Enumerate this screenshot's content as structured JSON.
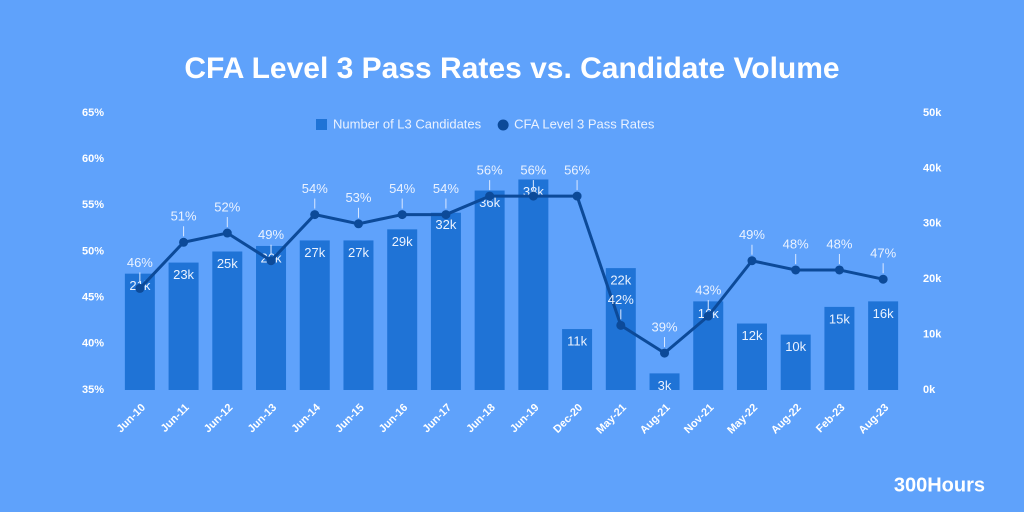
{
  "chart_data": {
    "type": "combo",
    "title": "CFA Level 3 Pass Rates vs. Candidate Volume",
    "categories": [
      "Jun-10",
      "Jun-11",
      "Jun-12",
      "Jun-13",
      "Jun-14",
      "Jun-15",
      "Jun-16",
      "Jun-17",
      "Jun-18",
      "Jun-19",
      "Dec-20",
      "May-21",
      "Aug-21",
      "Nov-21",
      "May-22",
      "Aug-22",
      "Feb-23",
      "Aug-23"
    ],
    "series": [
      {
        "name": "Number of L3 Candidates",
        "type": "bar",
        "axis": "y2",
        "color": "#1f73d6",
        "values": [
          21000,
          23000,
          25000,
          26000,
          27000,
          27000,
          29000,
          32000,
          36000,
          38000,
          11000,
          22000,
          3000,
          16000,
          12000,
          10000,
          15000,
          16000
        ],
        "value_labels": [
          "21k",
          "23k",
          "25k",
          "26k",
          "27k",
          "27k",
          "29k",
          "32k",
          "36k",
          "38k",
          "11k",
          "22k",
          "3k",
          "16k",
          "12k",
          "10k",
          "15k",
          "16k"
        ]
      },
      {
        "name": "CFA Level 3 Pass Rates",
        "type": "line",
        "color": "#0c4a99",
        "values": [
          46,
          51,
          52,
          49,
          54,
          53,
          54,
          54,
          56,
          56,
          56,
          42,
          39,
          43,
          49,
          48,
          48,
          47
        ],
        "value_labels": [
          "46%",
          "51%",
          "52%",
          "49%",
          "54%",
          "53%",
          "54%",
          "54%",
          "56%",
          "56%",
          "56%",
          "42%",
          "39%",
          "43%",
          "49%",
          "48%",
          "48%",
          "47%"
        ]
      }
    ],
    "ylim": [
      35,
      65
    ],
    "yticks": [
      {
        "value": 35,
        "label": "35%"
      },
      {
        "value": 40,
        "label": "40%"
      },
      {
        "value": 45,
        "label": "45%"
      },
      {
        "value": 50,
        "label": "50%"
      },
      {
        "value": 55,
        "label": "55%"
      },
      {
        "value": 60,
        "label": "60%"
      },
      {
        "value": 65,
        "label": "65%"
      }
    ],
    "y2lim": [
      0,
      50000
    ],
    "y2ticks": [
      {
        "value": 0,
        "label": "0k"
      },
      {
        "value": 10000,
        "label": "10k"
      },
      {
        "value": 20000,
        "label": "20k"
      },
      {
        "value": 30000,
        "label": "30k"
      },
      {
        "value": 40000,
        "label": "40k"
      },
      {
        "value": 50000,
        "label": "50k"
      }
    ],
    "legend": "top"
  },
  "brand": "300Hours"
}
